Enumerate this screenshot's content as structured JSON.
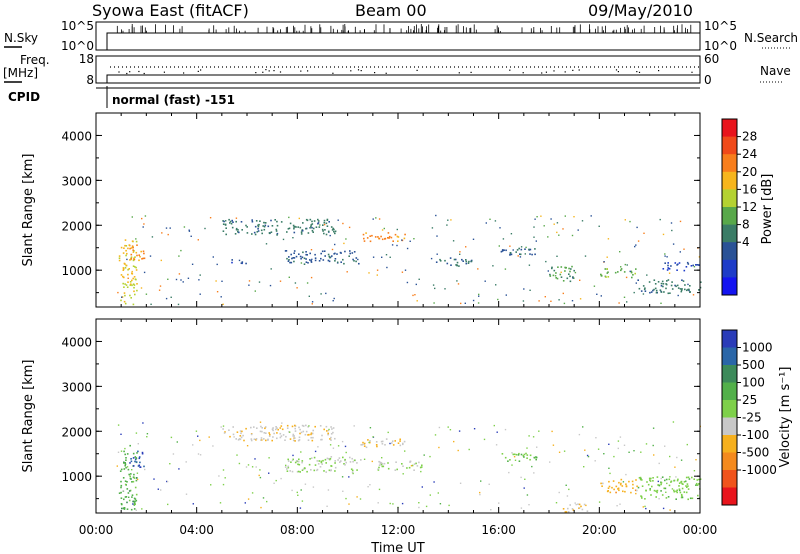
{
  "header": {
    "title": "Syowa East (fitACF)",
    "beam": "Beam 00",
    "date": "09/May/2010"
  },
  "status_panel": {
    "nsky_label": "N.Sky",
    "nsky_ticks": [
      "10^5",
      "10^0"
    ],
    "nsearch_label": "N.Search",
    "nsearch_ticks": [
      "10^5",
      "10^0"
    ],
    "freq_label_line1": "Freq.",
    "freq_label_line2": "[MHz]",
    "freq_ticks": [
      "18",
      "8"
    ],
    "nave_label": "Nave",
    "nave_ticks": [
      "60",
      "0"
    ],
    "cpid_label": "CPID",
    "cpid_value": "normal (fast) -151"
  },
  "power_colorbar": {
    "label": "Power [dB]",
    "ticks": [
      "28",
      "24",
      "20",
      "16",
      "12",
      "8",
      "4"
    ],
    "colors": [
      "#e8141c",
      "#f04a1a",
      "#f87e1c",
      "#f6b51d",
      "#b4d232",
      "#58a84a",
      "#3a7c66",
      "#2a5296",
      "#1e3cc8",
      "#1414f0"
    ]
  },
  "velocity_colorbar": {
    "label": "Velocity [m s⁻¹]",
    "ticks": [
      "1000",
      "500",
      "100",
      "25",
      "-25",
      "-100",
      "-500",
      "-1000"
    ],
    "colors": [
      "#2a3cb8",
      "#2a66a8",
      "#3c8a5a",
      "#52b04a",
      "#7ed04a",
      "#c8c8c8",
      "#f6b01e",
      "#f48a1e",
      "#f0541c",
      "#e8141c"
    ]
  },
  "chart_data": [
    {
      "type": "heatmap",
      "name": "Power",
      "ylabel": "Slant Range [km]",
      "xlabel": "Time UT",
      "xlim": [
        "00:00",
        "24:00"
      ],
      "ylim": [
        180,
        4500
      ],
      "yticks": [
        "4000",
        "3000",
        "2000",
        "1000"
      ],
      "xticks": [
        "00:00",
        "04:00",
        "08:00",
        "12:00",
        "16:00",
        "20:00",
        "00:00"
      ],
      "grid": false,
      "colorscale_units": "dB",
      "colorscale_range": [
        0,
        30
      ],
      "echo_regions": [
        {
          "t0": 0.9,
          "t1": 1.6,
          "r0": 250,
          "r1": 1700,
          "value": 18
        },
        {
          "t0": 1.3,
          "t1": 1.9,
          "r0": 1200,
          "r1": 1600,
          "value": 22
        },
        {
          "t0": 5.0,
          "t1": 9.5,
          "r0": 1800,
          "r1": 2150,
          "value": 10
        },
        {
          "t0": 5.2,
          "t1": 6.0,
          "r0": 1150,
          "r1": 1250,
          "value": 6
        },
        {
          "t0": 7.5,
          "t1": 10.5,
          "r0": 1150,
          "r1": 1450,
          "value": 8
        },
        {
          "t0": 10.5,
          "t1": 12.3,
          "r0": 1650,
          "r1": 1850,
          "value": 22
        },
        {
          "t0": 13.5,
          "t1": 15.0,
          "r0": 1100,
          "r1": 1300,
          "value": 10
        },
        {
          "t0": 16.0,
          "t1": 17.5,
          "r0": 1350,
          "r1": 1550,
          "value": 8
        },
        {
          "t0": 18.0,
          "t1": 19.0,
          "r0": 750,
          "r1": 1100,
          "value": 12
        },
        {
          "t0": 20.0,
          "t1": 21.5,
          "r0": 850,
          "r1": 1050,
          "value": 14
        },
        {
          "t0": 21.5,
          "t1": 24.0,
          "r0": 500,
          "r1": 800,
          "value": 10
        },
        {
          "t0": 22.5,
          "t1": 24.0,
          "r0": 1000,
          "r1": 1200,
          "value": 6
        }
      ]
    },
    {
      "type": "heatmap",
      "name": "Velocity",
      "ylabel": "Slant Range [km]",
      "xlabel": "Time UT",
      "xlim": [
        "00:00",
        "24:00"
      ],
      "ylim": [
        180,
        4500
      ],
      "yticks": [
        "4000",
        "3000",
        "2000",
        "1000"
      ],
      "xticks": [
        "00:00",
        "04:00",
        "08:00",
        "12:00",
        "16:00",
        "20:00",
        "00:00"
      ],
      "grid": false,
      "colorscale_units": "m s^-1",
      "colorscale_range": [
        -1000,
        1000
      ],
      "echo_regions": [
        {
          "t0": 0.9,
          "t1": 1.6,
          "r0": 250,
          "r1": 1700,
          "value": 300
        },
        {
          "t0": 1.3,
          "t1": 1.9,
          "r0": 1200,
          "r1": 1600,
          "value": 800
        },
        {
          "t0": 5.0,
          "t1": 9.5,
          "r0": 1800,
          "r1": 2150,
          "value": -150
        },
        {
          "t0": 7.5,
          "t1": 10.5,
          "r0": 1100,
          "r1": 1450,
          "value": 0
        },
        {
          "t0": 10.5,
          "t1": 12.3,
          "r0": 1650,
          "r1": 1850,
          "value": -200
        },
        {
          "t0": 11.0,
          "t1": 13.0,
          "r0": 1150,
          "r1": 1350,
          "value": 0
        },
        {
          "t0": 16.0,
          "t1": 17.5,
          "r0": 1350,
          "r1": 1550,
          "value": 150
        },
        {
          "t0": 18.5,
          "t1": 19.5,
          "r0": 200,
          "r1": 400,
          "value": -200
        },
        {
          "t0": 20.0,
          "t1": 21.5,
          "r0": 650,
          "r1": 950,
          "value": -300
        },
        {
          "t0": 21.5,
          "t1": 24.0,
          "r0": 500,
          "r1": 1000,
          "value": 120
        }
      ]
    }
  ]
}
